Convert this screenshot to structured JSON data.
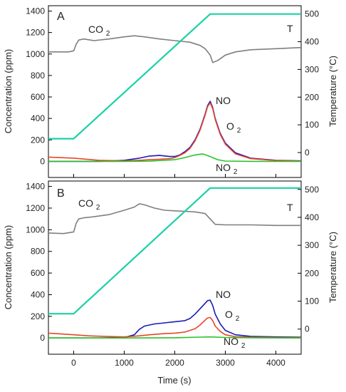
{
  "chart_data": [
    {
      "type": "line",
      "panel_label": "A",
      "xlabel": "",
      "ylabel": "Concentration (ppm)",
      "y2label": "Temperature (°C)",
      "xlim": [
        -500,
        4500
      ],
      "ylim": [
        -150,
        1450
      ],
      "y2lim": [
        -90,
        530
      ],
      "xticks": [],
      "yticks": [
        0,
        200,
        400,
        600,
        800,
        1000,
        1200,
        1400
      ],
      "y2ticks": [
        0,
        100,
        200,
        300,
        400,
        500
      ],
      "series": [
        {
          "name": "CO2",
          "axis": "left",
          "color": "#7f7f7f",
          "x": [
            -500,
            -100,
            0,
            50,
            100,
            200,
            400,
            700,
            1000,
            1200,
            1400,
            1700,
            2000,
            2300,
            2500,
            2600,
            2700,
            2750,
            2850,
            3000,
            3200,
            3500,
            4000,
            4500
          ],
          "y": [
            1020,
            1020,
            1030,
            1090,
            1130,
            1140,
            1125,
            1140,
            1160,
            1170,
            1160,
            1140,
            1125,
            1110,
            1080,
            1050,
            990,
            920,
            940,
            990,
            1020,
            1040,
            1050,
            1060
          ]
        },
        {
          "name": "T",
          "axis": "right",
          "color": "#1bd1a5",
          "x": [
            -500,
            0,
            2700,
            4500
          ],
          "y": [
            50,
            50,
            500,
            500
          ]
        },
        {
          "name": "NO",
          "axis": "left",
          "color": "#1a1ab8",
          "x": [
            -500,
            0,
            500,
            1000,
            1300,
            1500,
            1700,
            1900,
            2000,
            2100,
            2200,
            2300,
            2400,
            2500,
            2600,
            2650,
            2700,
            2750,
            2800,
            2900,
            3000,
            3200,
            3500,
            4000,
            4500
          ],
          "y": [
            0,
            0,
            0,
            10,
            30,
            50,
            55,
            45,
            45,
            60,
            90,
            130,
            200,
            300,
            440,
            520,
            560,
            500,
            400,
            260,
            170,
            80,
            30,
            10,
            5
          ]
        },
        {
          "name": "O2",
          "axis": "left",
          "color": "#e8462a",
          "x": [
            -500,
            0,
            500,
            1000,
            1300,
            1500,
            1700,
            1900,
            2000,
            2100,
            2200,
            2300,
            2400,
            2500,
            2600,
            2650,
            2700,
            2750,
            2800,
            2900,
            3000,
            3200,
            3500,
            4000,
            4500
          ],
          "y": [
            40,
            30,
            10,
            5,
            10,
            15,
            20,
            25,
            35,
            55,
            80,
            120,
            190,
            290,
            430,
            510,
            545,
            490,
            390,
            250,
            160,
            70,
            25,
            8,
            3
          ]
        },
        {
          "name": "NO2",
          "axis": "left",
          "color": "#2ac22a",
          "x": [
            -500,
            0,
            500,
            1000,
            1500,
            2000,
            2200,
            2400,
            2550,
            2700,
            2850,
            3000,
            3500,
            4000,
            4500
          ],
          "y": [
            0,
            0,
            0,
            0,
            2,
            15,
            35,
            60,
            70,
            45,
            15,
            3,
            0,
            0,
            0
          ]
        }
      ],
      "labels": {
        "co2": "CO2",
        "t": "T",
        "no": "NO",
        "o2": "O2",
        "no2": "NO2"
      }
    },
    {
      "type": "line",
      "panel_label": "B",
      "xlabel": "Time (s)",
      "ylabel": "Concentration (ppm)",
      "y2label": "Temperature (°C)",
      "xlim": [
        -500,
        4500
      ],
      "ylim": [
        -150,
        1450
      ],
      "y2lim": [
        -90,
        530
      ],
      "xticks": [
        0,
        1000,
        2000,
        3000,
        4000
      ],
      "yticks": [
        0,
        200,
        400,
        600,
        800,
        1000,
        1200,
        1400
      ],
      "y2ticks": [
        0,
        100,
        200,
        300,
        400,
        500
      ],
      "series": [
        {
          "name": "CO2",
          "axis": "left",
          "color": "#7f7f7f",
          "x": [
            -500,
            -200,
            0,
            50,
            100,
            200,
            400,
            700,
            1000,
            1200,
            1300,
            1400,
            1600,
            1800,
            2000,
            2200,
            2400,
            2600,
            2700,
            2800,
            3000,
            3500,
            4000,
            4500
          ],
          "y": [
            970,
            965,
            980,
            1060,
            1100,
            1110,
            1120,
            1140,
            1180,
            1210,
            1240,
            1230,
            1200,
            1180,
            1175,
            1170,
            1165,
            1150,
            1100,
            1050,
            1045,
            1045,
            1040,
            1040
          ]
        },
        {
          "name": "T",
          "axis": "right",
          "color": "#1bd1a5",
          "x": [
            -500,
            0,
            2700,
            4500
          ],
          "y": [
            55,
            55,
            505,
            505
          ]
        },
        {
          "name": "NO",
          "axis": "left",
          "color": "#1a1ab8",
          "x": [
            -500,
            0,
            500,
            1000,
            1200,
            1300,
            1400,
            1600,
            1800,
            2000,
            2200,
            2300,
            2400,
            2500,
            2600,
            2650,
            2700,
            2750,
            2800,
            2900,
            3000,
            3200,
            3500,
            4000,
            4500
          ],
          "y": [
            0,
            0,
            0,
            5,
            30,
            80,
            110,
            130,
            140,
            150,
            160,
            180,
            220,
            270,
            320,
            345,
            350,
            300,
            220,
            130,
            70,
            30,
            15,
            10,
            8
          ]
        },
        {
          "name": "O2",
          "axis": "left",
          "color": "#e8462a",
          "x": [
            -500,
            0,
            300,
            600,
            1000,
            1300,
            1500,
            1800,
            2000,
            2200,
            2400,
            2500,
            2600,
            2650,
            2700,
            2750,
            2800,
            2900,
            3000,
            3200,
            3500,
            4000,
            4500
          ],
          "y": [
            45,
            30,
            20,
            15,
            10,
            20,
            30,
            40,
            45,
            55,
            85,
            120,
            165,
            185,
            190,
            160,
            110,
            60,
            30,
            12,
            8,
            5,
            5
          ]
        },
        {
          "name": "NO2",
          "axis": "left",
          "color": "#2ac22a",
          "x": [
            -500,
            0,
            1000,
            2000,
            2500,
            2700,
            3000,
            3500,
            4500
          ],
          "y": [
            0,
            0,
            0,
            2,
            8,
            10,
            5,
            2,
            0
          ]
        }
      ],
      "labels": {
        "co2": "CO2",
        "t": "T",
        "no": "NO",
        "o2": "O2",
        "no2": "NO2"
      }
    }
  ]
}
